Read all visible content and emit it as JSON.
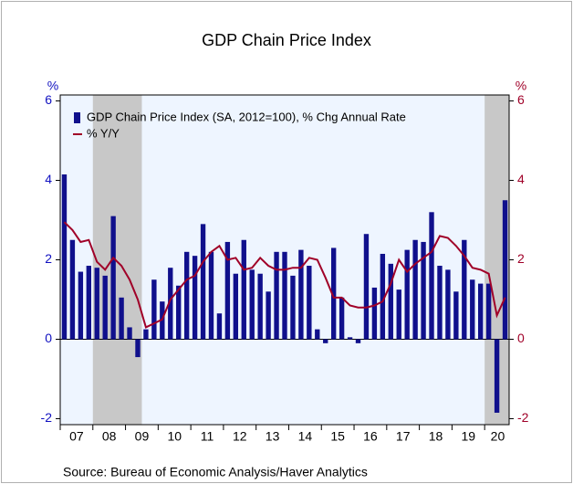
{
  "chart_data": {
    "type": "bar",
    "title": "GDP Chain Price Index",
    "source": "Source:  Bureau of Economic Analysis/Haver Analytics",
    "y_label": "%",
    "y2_label": "%",
    "legend": "upper left",
    "x": [
      2007.125,
      2007.375,
      2007.625,
      2007.875,
      2008.125,
      2008.375,
      2008.625,
      2008.875,
      2009.125,
      2009.375,
      2009.625,
      2009.875,
      2010.125,
      2010.375,
      2010.625,
      2010.875,
      2011.125,
      2011.375,
      2011.625,
      2011.875,
      2012.125,
      2012.375,
      2012.625,
      2012.875,
      2013.125,
      2013.375,
      2013.625,
      2013.875,
      2014.125,
      2014.375,
      2014.625,
      2014.875,
      2015.125,
      2015.375,
      2015.625,
      2015.875,
      2016.125,
      2016.375,
      2016.625,
      2016.875,
      2017.125,
      2017.375,
      2017.625,
      2017.875,
      2018.125,
      2018.375,
      2018.625,
      2018.875,
      2019.125,
      2019.375,
      2019.625,
      2019.875,
      2020.125,
      2020.375,
      2020.625
    ],
    "xlim": [
      2007,
      2020.75
    ],
    "xticks": [
      {
        "value": 2007.5,
        "label": "07"
      },
      {
        "value": 2008.5,
        "label": "08"
      },
      {
        "value": 2009.5,
        "label": "09"
      },
      {
        "value": 2010.5,
        "label": "10"
      },
      {
        "value": 2011.5,
        "label": "11"
      },
      {
        "value": 2012.5,
        "label": "12"
      },
      {
        "value": 2013.5,
        "label": "13"
      },
      {
        "value": 2014.5,
        "label": "14"
      },
      {
        "value": 2015.5,
        "label": "15"
      },
      {
        "value": 2016.5,
        "label": "16"
      },
      {
        "value": 2017.5,
        "label": "17"
      },
      {
        "value": 2018.5,
        "label": "18"
      },
      {
        "value": 2019.5,
        "label": "19"
      },
      {
        "value": 2020.4,
        "label": "20"
      }
    ],
    "ylim": [
      -2.15,
      6.15
    ],
    "yticks": [
      -2,
      0,
      2,
      4,
      6
    ],
    "y2lim": [
      -2.15,
      6.15
    ],
    "y2ticks": [
      -2,
      0,
      2,
      4,
      6
    ],
    "shaded_periods": [
      [
        2008,
        2009.5
      ],
      [
        2020,
        2020.75
      ]
    ],
    "series": [
      {
        "name": "GDP Chain Price Index (SA, 2012=100), % Chg Annual Rate",
        "type": "bar",
        "color": "#10108c",
        "values": [
          4.15,
          2.5,
          1.7,
          1.85,
          1.8,
          1.6,
          3.1,
          1.05,
          0.3,
          -0.45,
          0.25,
          1.5,
          0.95,
          1.8,
          1.35,
          2.2,
          2.1,
          2.9,
          2.2,
          0.65,
          2.45,
          1.65,
          2.5,
          1.75,
          1.65,
          1.2,
          2.2,
          2.2,
          1.6,
          2.25,
          1.85,
          0.25,
          -0.1,
          2.3,
          1.05,
          0.05,
          -0.1,
          2.65,
          1.3,
          2.15,
          1.9,
          1.25,
          2.25,
          2.5,
          2.45,
          3.2,
          1.85,
          1.75,
          1.2,
          2.5,
          1.5,
          1.4,
          1.4,
          -1.85,
          3.5
        ]
      },
      {
        "name": "% Y/Y",
        "type": "line",
        "axis": "y2",
        "color": "#a00028",
        "values": [
          2.95,
          2.75,
          2.45,
          2.5,
          1.95,
          1.75,
          2.05,
          1.85,
          1.5,
          1.0,
          0.3,
          0.4,
          0.5,
          1.0,
          1.25,
          1.5,
          1.6,
          1.95,
          2.2,
          2.35,
          2.0,
          2.05,
          1.75,
          1.8,
          2.05,
          1.85,
          1.75,
          1.75,
          1.8,
          1.8,
          2.05,
          2.0,
          1.55,
          1.05,
          1.05,
          0.85,
          0.8,
          0.8,
          0.85,
          0.95,
          1.4,
          2.0,
          1.7,
          1.9,
          2.05,
          2.2,
          2.6,
          2.55,
          2.35,
          2.1,
          1.8,
          1.75,
          1.65,
          0.6,
          1.05
        ]
      }
    ]
  }
}
